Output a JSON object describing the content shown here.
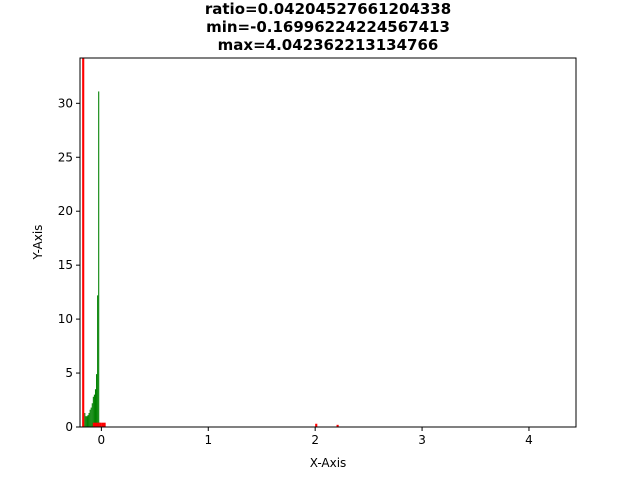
{
  "chart_data": {
    "type": "bar",
    "title_lines": [
      "ratio=0.04204527661204338",
      "min=-0.16996224224567413",
      "max=4.042362213134766"
    ],
    "xlabel": "X-Axis",
    "ylabel": "Y-Axis",
    "xlim": [
      -0.2,
      4.44
    ],
    "ylim": [
      0,
      34.2
    ],
    "x_ticks": [
      0,
      1,
      2,
      3,
      4
    ],
    "y_ticks": [
      0,
      5,
      10,
      15,
      20,
      25,
      30
    ],
    "grid": false,
    "legend": "none",
    "series": [
      {
        "color": "#008000",
        "bin_width": 0.01,
        "bins": [
          {
            "x0": -0.16,
            "value": 1.3
          },
          {
            "x0": -0.15,
            "value": 1.0
          },
          {
            "x0": -0.14,
            "value": 1.0
          },
          {
            "x0": -0.13,
            "value": 1.1
          },
          {
            "x0": -0.12,
            "value": 1.3
          },
          {
            "x0": -0.11,
            "value": 1.6
          },
          {
            "x0": -0.1,
            "value": 1.8
          },
          {
            "x0": -0.09,
            "value": 2.2
          },
          {
            "x0": -0.08,
            "value": 2.8
          },
          {
            "x0": -0.07,
            "value": 3.0
          },
          {
            "x0": -0.06,
            "value": 3.5
          },
          {
            "x0": -0.05,
            "value": 4.9
          },
          {
            "x0": -0.04,
            "value": 12.2
          },
          {
            "x0": -0.03,
            "value": 31.1
          },
          {
            "x0": -0.02,
            "value": 0.4
          }
        ]
      },
      {
        "color": "#ff0000",
        "bin_width": 0.02,
        "bins": [
          {
            "x0": -0.18,
            "value": 34.2
          },
          {
            "x0": -0.08,
            "value": 0.4
          },
          {
            "x0": -0.06,
            "value": 0.4
          },
          {
            "x0": -0.04,
            "value": 0.4
          },
          {
            "x0": -0.02,
            "value": 0.4
          },
          {
            "x0": 0.0,
            "value": 0.4
          },
          {
            "x0": 0.02,
            "value": 0.4
          },
          {
            "x0": 2.0,
            "value": 0.3
          },
          {
            "x0": 2.2,
            "value": 0.2
          }
        ]
      }
    ]
  }
}
